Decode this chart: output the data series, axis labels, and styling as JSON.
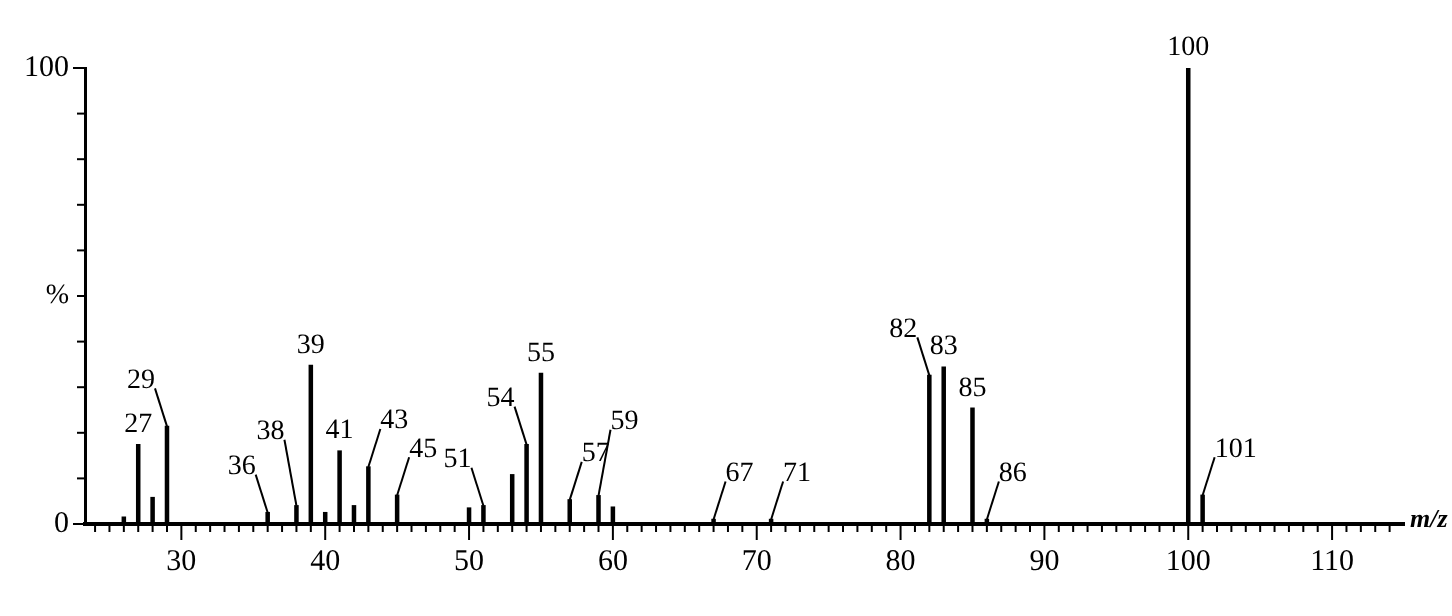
{
  "chart_data": {
    "type": "bar",
    "xlabel": "m/z",
    "ylabel": "%",
    "x": [
      26,
      27,
      28,
      29,
      36,
      38,
      39,
      40,
      41,
      42,
      43,
      45,
      50,
      51,
      53,
      54,
      55,
      57,
      59,
      60,
      67,
      71,
      82,
      83,
      85,
      86,
      100,
      101
    ],
    "values": [
      1.5,
      17.4,
      5.8,
      21.4,
      2.5,
      4,
      34.8,
      2.5,
      16,
      4,
      12.5,
      6.3,
      3.5,
      4,
      10.8,
      17.4,
      33,
      5.3,
      6.2,
      3.7,
      1,
      1,
      32.6,
      34.4,
      25.4,
      1,
      100,
      6.3
    ],
    "color": "#000000",
    "xlim": [
      23.3,
      115
    ],
    "xticks": [
      {
        "value": 24,
        "label": null
      },
      {
        "value": 25,
        "label": null
      },
      {
        "value": 26,
        "label": null
      },
      {
        "value": 27,
        "label": null
      },
      {
        "value": 28,
        "label": null
      },
      {
        "value": 29,
        "label": null
      },
      30,
      {
        "value": 31,
        "label": null
      },
      {
        "value": 32,
        "label": null
      },
      {
        "value": 33,
        "label": null
      },
      {
        "value": 34,
        "label": null
      },
      {
        "value": 35,
        "label": null
      },
      {
        "value": 36,
        "label": null
      },
      {
        "value": 37,
        "label": null
      },
      {
        "value": 38,
        "label": null
      },
      {
        "value": 39,
        "label": null
      },
      40,
      {
        "value": 41,
        "label": null
      },
      {
        "value": 42,
        "label": null
      },
      {
        "value": 43,
        "label": null
      },
      {
        "value": 44,
        "label": null
      },
      {
        "value": 45,
        "label": null
      },
      {
        "value": 46,
        "label": null
      },
      {
        "value": 47,
        "label": null
      },
      {
        "value": 48,
        "label": null
      },
      {
        "value": 49,
        "label": null
      },
      50,
      {
        "value": 51,
        "label": null
      },
      {
        "value": 52,
        "label": null
      },
      {
        "value": 53,
        "label": null
      },
      {
        "value": 54,
        "label": null
      },
      {
        "value": 55,
        "label": null
      },
      {
        "value": 56,
        "label": null
      },
      {
        "value": 57,
        "label": null
      },
      {
        "value": 58,
        "label": null
      },
      {
        "value": 59,
        "label": null
      },
      60,
      {
        "value": 61,
        "label": null
      },
      {
        "value": 62,
        "label": null
      },
      {
        "value": 63,
        "label": null
      },
      {
        "value": 64,
        "label": null
      },
      {
        "value": 65,
        "label": null
      },
      {
        "value": 66,
        "label": null
      },
      {
        "value": 67,
        "label": null
      },
      {
        "value": 68,
        "label": null
      },
      {
        "value": 69,
        "label": null
      },
      70,
      {
        "value": 71,
        "label": null
      },
      {
        "value": 72,
        "label": null
      },
      {
        "value": 73,
        "label": null
      },
      {
        "value": 74,
        "label": null
      },
      {
        "value": 75,
        "label": null
      },
      {
        "value": 76,
        "label": null
      },
      {
        "value": 77,
        "label": null
      },
      {
        "value": 78,
        "label": null
      },
      {
        "value": 79,
        "label": null
      },
      80,
      {
        "value": 81,
        "label": null
      },
      {
        "value": 82,
        "label": null
      },
      {
        "value": 83,
        "label": null
      },
      {
        "value": 84,
        "label": null
      },
      {
        "value": 85,
        "label": null
      },
      {
        "value": 86,
        "label": null
      },
      {
        "value": 87,
        "label": null
      },
      {
        "value": 88,
        "label": null
      },
      {
        "value": 89,
        "label": null
      },
      90,
      {
        "value": 91,
        "label": null
      },
      {
        "value": 92,
        "label": null
      },
      {
        "value": 93,
        "label": null
      },
      {
        "value": 94,
        "label": null
      },
      {
        "value": 95,
        "label": null
      },
      {
        "value": 96,
        "label": null
      },
      {
        "value": 97,
        "label": null
      },
      {
        "value": 98,
        "label": null
      },
      {
        "value": 99,
        "label": null
      },
      100,
      {
        "value": 101,
        "label": null
      },
      {
        "value": 102,
        "label": null
      },
      {
        "value": 103,
        "label": null
      },
      {
        "value": 104,
        "label": null
      },
      {
        "value": 105,
        "label": null
      },
      {
        "value": 106,
        "label": null
      },
      {
        "value": 107,
        "label": null
      },
      {
        "value": 108,
        "label": null
      },
      {
        "value": 109,
        "label": null
      },
      110,
      {
        "value": 111,
        "label": null
      },
      {
        "value": 112,
        "label": null
      },
      {
        "value": 113,
        "label": null
      },
      {
        "value": 114,
        "label": null
      }
    ],
    "ylim": [
      0,
      100
    ],
    "yticks": [
      0,
      {
        "value": 10,
        "label": null
      },
      {
        "value": 20,
        "label": null
      },
      {
        "value": 30,
        "label": null
      },
      {
        "value": 40,
        "label": null
      },
      {
        "value": 50,
        "label": null
      },
      {
        "value": 60,
        "label": null
      },
      {
        "value": 70,
        "label": null
      },
      {
        "value": 80,
        "label": null
      },
      {
        "value": 90,
        "label": null
      },
      100
    ],
    "grid": false,
    "legend": false,
    "annotations": [
      {
        "text": "27",
        "x": 27,
        "y": 17.4
      },
      {
        "text": "29",
        "x": 29,
        "y": 21.4
      },
      {
        "text": "36",
        "x": 36,
        "y": 2.5
      },
      {
        "text": "38",
        "x": 38,
        "y": 4
      },
      {
        "text": "39",
        "x": 39,
        "y": 34.8
      },
      {
        "text": "41",
        "x": 41,
        "y": 16
      },
      {
        "text": "43",
        "x": 43,
        "y": 12.5
      },
      {
        "text": "45",
        "x": 45,
        "y": 6.3
      },
      {
        "text": "51",
        "x": 51,
        "y": 4
      },
      {
        "text": "54",
        "x": 54,
        "y": 17.4
      },
      {
        "text": "55",
        "x": 55,
        "y": 33
      },
      {
        "text": "57",
        "x": 57,
        "y": 5.3
      },
      {
        "text": "59",
        "x": 59,
        "y": 6.2
      },
      {
        "text": "67",
        "x": 67,
        "y": 1
      },
      {
        "text": "71",
        "x": 71,
        "y": 1
      },
      {
        "text": "82",
        "x": 82,
        "y": 32.6
      },
      {
        "text": "83",
        "x": 83,
        "y": 34.4
      },
      {
        "text": "85",
        "x": 85,
        "y": 25.4
      },
      {
        "text": "86",
        "x": 86,
        "y": 1
      },
      {
        "text": "100",
        "x": 100,
        "y": 100
      },
      {
        "text": "101",
        "x": 101,
        "y": 6.3
      }
    ]
  }
}
